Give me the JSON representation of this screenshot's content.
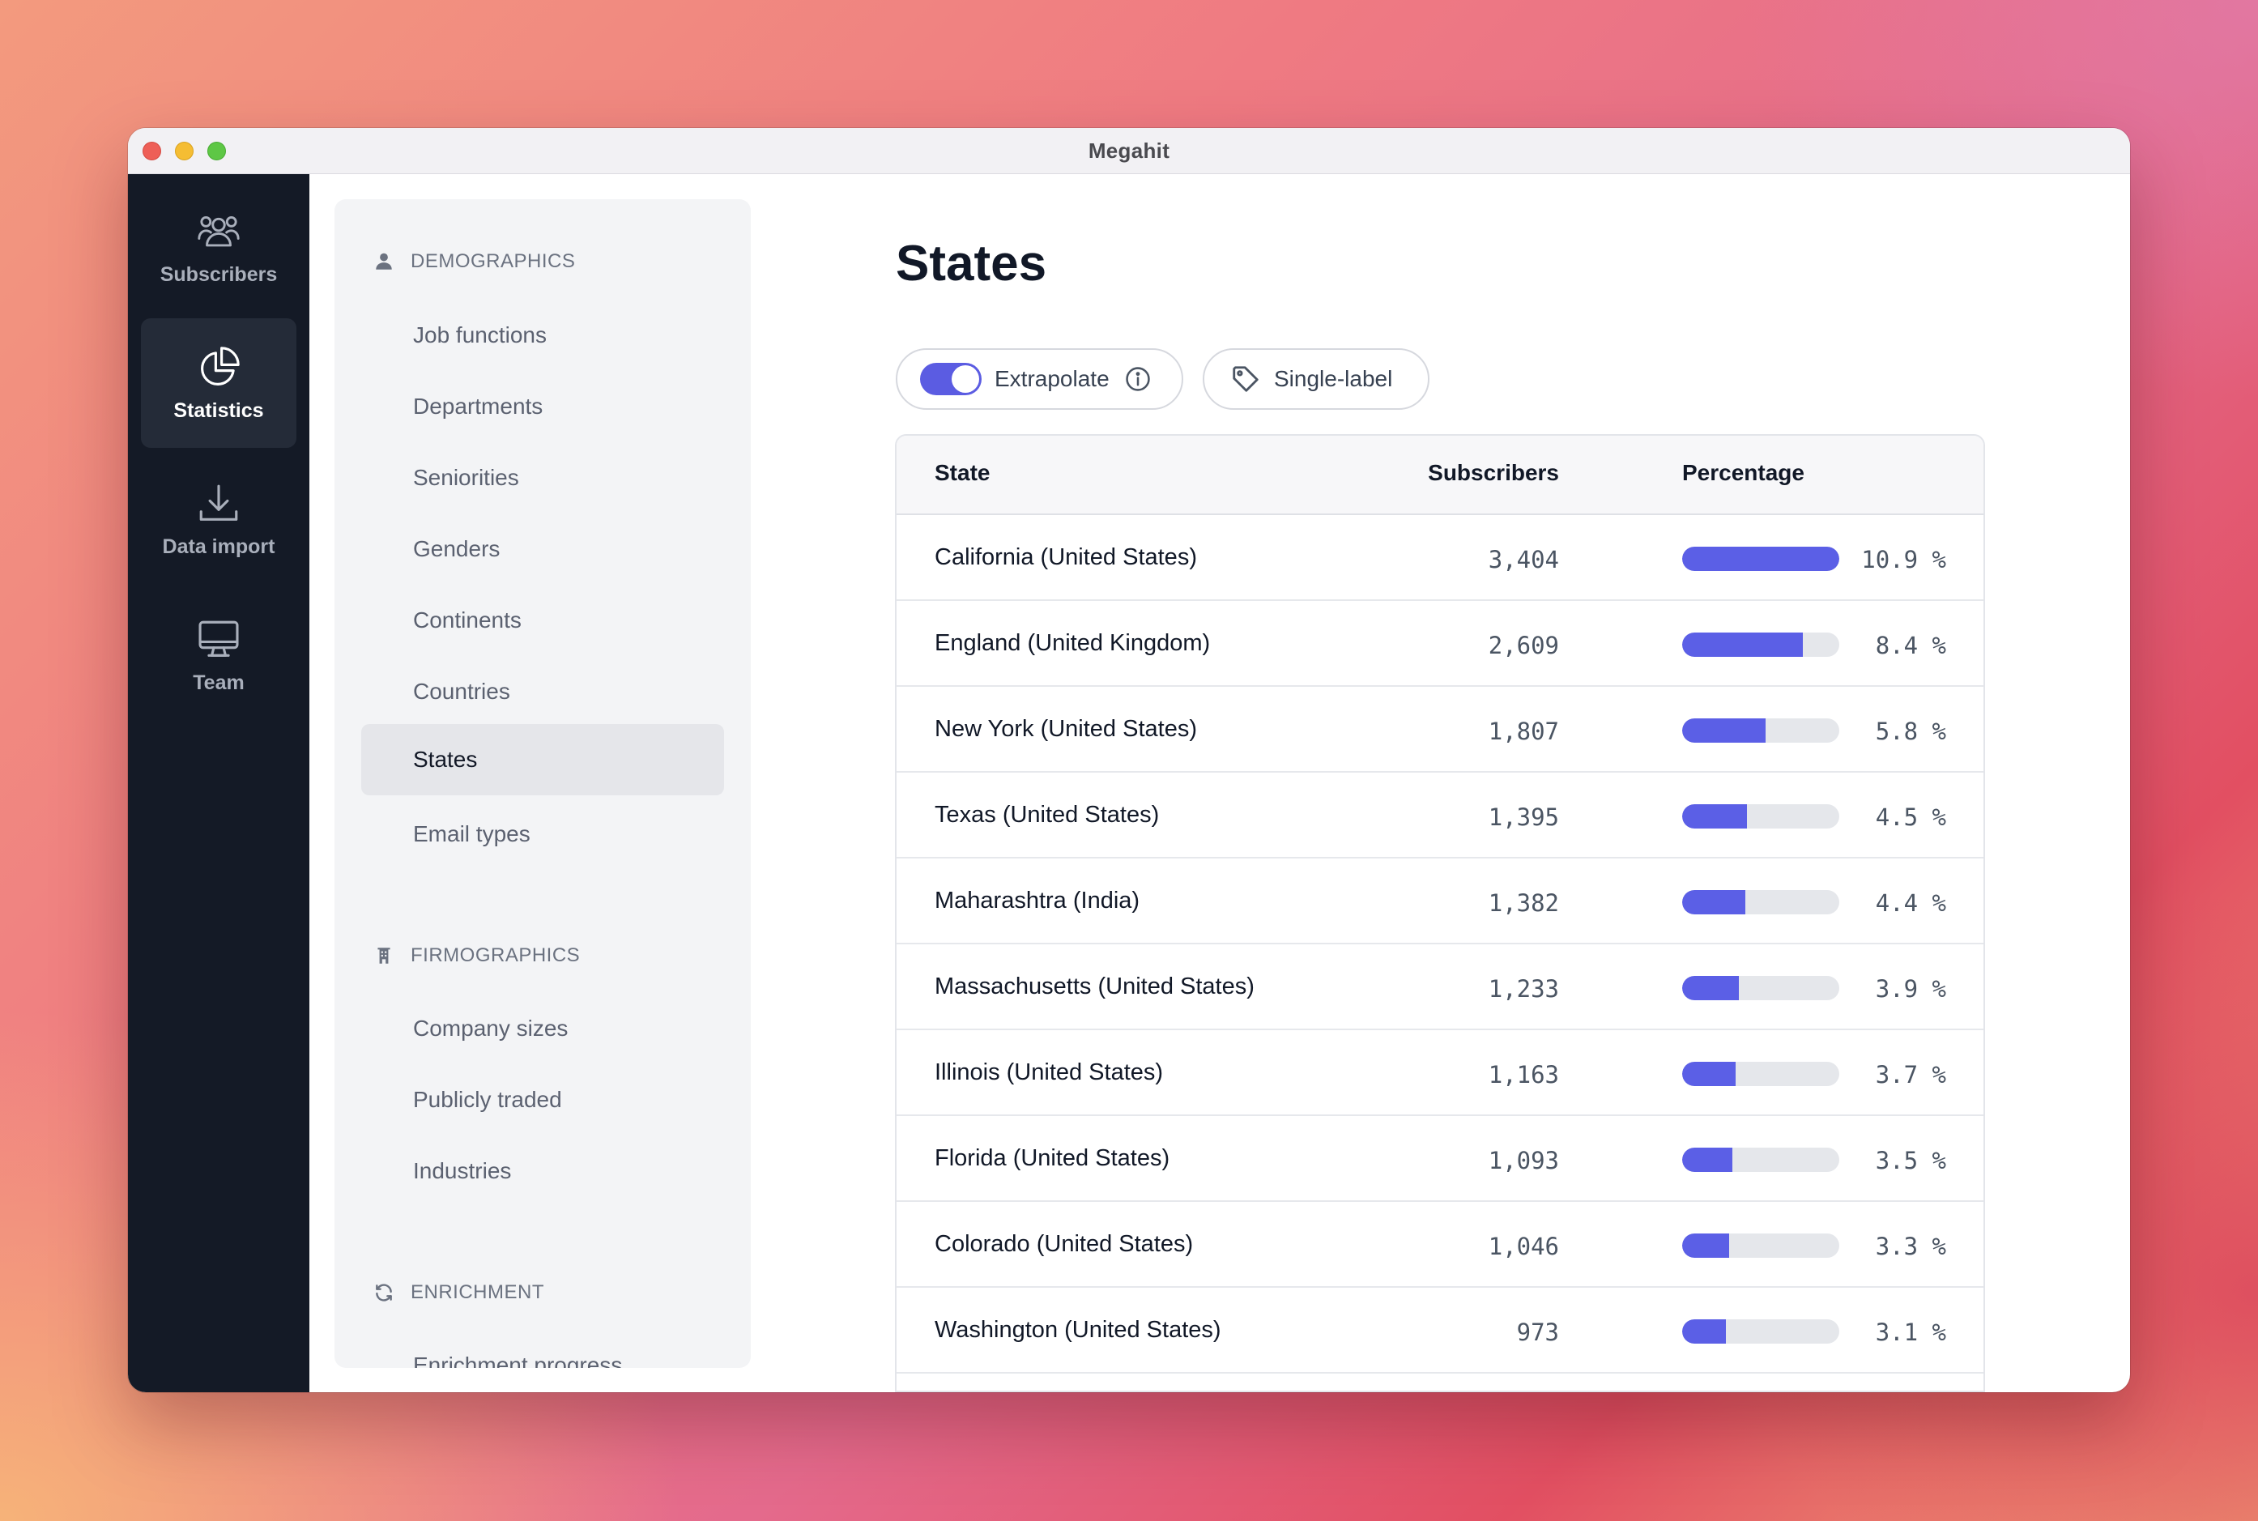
{
  "window": {
    "title": "Megahit"
  },
  "rail": {
    "items": [
      {
        "label": "Subscribers",
        "icon": "users-icon",
        "active": false
      },
      {
        "label": "Statistics",
        "icon": "pie-chart-icon",
        "active": true
      },
      {
        "label": "Data import",
        "icon": "download-icon",
        "active": false
      },
      {
        "label": "Team",
        "icon": "monitor-icon",
        "active": false
      }
    ]
  },
  "subnav": {
    "demographics": {
      "heading": "DEMOGRAPHICS",
      "items": [
        "Job functions",
        "Departments",
        "Seniorities",
        "Genders",
        "Continents",
        "Countries",
        "States",
        "Email types"
      ]
    },
    "firmographics": {
      "heading": "FIRMOGRAPHICS",
      "items": [
        "Company sizes",
        "Publicly traded",
        "Industries"
      ]
    },
    "enrichment": {
      "heading": "ENRICHMENT",
      "items": [
        "Enrichment progress"
      ]
    },
    "active_item": "States"
  },
  "main": {
    "title": "States",
    "extrapolate": {
      "label": "Extrapolate",
      "enabled": true
    },
    "single_label": {
      "label": "Single-label"
    },
    "table": {
      "headers": {
        "state": "State",
        "subscribers": "Subscribers",
        "percentage": "Percentage"
      },
      "rows": [
        {
          "state": "California (United States)",
          "subscribers": "3,404",
          "percentage": "10.9 %",
          "fill": 1.0
        },
        {
          "state": "England (United Kingdom)",
          "subscribers": "2,609",
          "percentage": "8.4 %",
          "fill": 0.77
        },
        {
          "state": "New York (United States)",
          "subscribers": "1,807",
          "percentage": "5.8 %",
          "fill": 0.53
        },
        {
          "state": "Texas (United States)",
          "subscribers": "1,395",
          "percentage": "4.5 %",
          "fill": 0.41
        },
        {
          "state": "Maharashtra (India)",
          "subscribers": "1,382",
          "percentage": "4.4 %",
          "fill": 0.4
        },
        {
          "state": "Massachusetts (United States)",
          "subscribers": "1,233",
          "percentage": "3.9 %",
          "fill": 0.36
        },
        {
          "state": "Illinois (United States)",
          "subscribers": "1,163",
          "percentage": "3.7 %",
          "fill": 0.34
        },
        {
          "state": "Florida (United States)",
          "subscribers": "1,093",
          "percentage": "3.5 %",
          "fill": 0.32
        },
        {
          "state": "Colorado (United States)",
          "subscribers": "1,046",
          "percentage": "3.3 %",
          "fill": 0.3
        },
        {
          "state": "Washington (United States)",
          "subscribers": "973",
          "percentage": "3.1 %",
          "fill": 0.28
        }
      ]
    }
  },
  "colors": {
    "accent": "#5b5fe6",
    "rail_bg": "#141a26",
    "bar_track": "#e5e7eb"
  }
}
